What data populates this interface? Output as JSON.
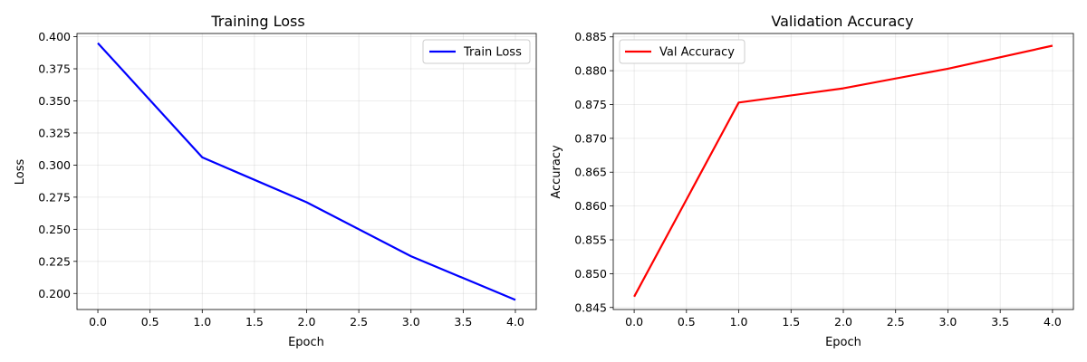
{
  "chart_data": [
    {
      "type": "line",
      "title": "Training Loss",
      "xlabel": "Epoch",
      "ylabel": "Loss",
      "xlim": [
        -0.2,
        4.2
      ],
      "ylim": [
        0.1875,
        0.4025
      ],
      "xticks": [
        "0.0",
        "0.5",
        "1.0",
        "1.5",
        "2.0",
        "2.5",
        "3.0",
        "3.5",
        "4.0"
      ],
      "yticks": [
        "0.200",
        "0.225",
        "0.250",
        "0.275",
        "0.300",
        "0.325",
        "0.350",
        "0.375",
        "0.400"
      ],
      "grid": true,
      "legend_position": "top-right",
      "x": [
        0,
        1,
        2,
        3,
        4
      ],
      "series": [
        {
          "name": "Train Loss",
          "color": "#0000ff",
          "values": [
            0.395,
            0.306,
            0.271,
            0.229,
            0.195
          ]
        }
      ]
    },
    {
      "type": "line",
      "title": "Validation Accuracy",
      "xlabel": "Epoch",
      "ylabel": "Accuracy",
      "xlim": [
        -0.2,
        4.2
      ],
      "ylim": [
        0.8447,
        0.8855
      ],
      "xticks": [
        "0.0",
        "0.5",
        "1.0",
        "1.5",
        "2.0",
        "2.5",
        "3.0",
        "3.5",
        "4.0"
      ],
      "yticks": [
        "0.845",
        "0.850",
        "0.855",
        "0.860",
        "0.865",
        "0.870",
        "0.875",
        "0.880",
        "0.885"
      ],
      "grid": true,
      "legend_position": "top-left",
      "x": [
        0,
        1,
        2,
        3,
        4
      ],
      "series": [
        {
          "name": "Val Accuracy",
          "color": "#ff0000",
          "values": [
            0.8466,
            0.8753,
            0.8774,
            0.8803,
            0.8837
          ]
        }
      ]
    }
  ]
}
